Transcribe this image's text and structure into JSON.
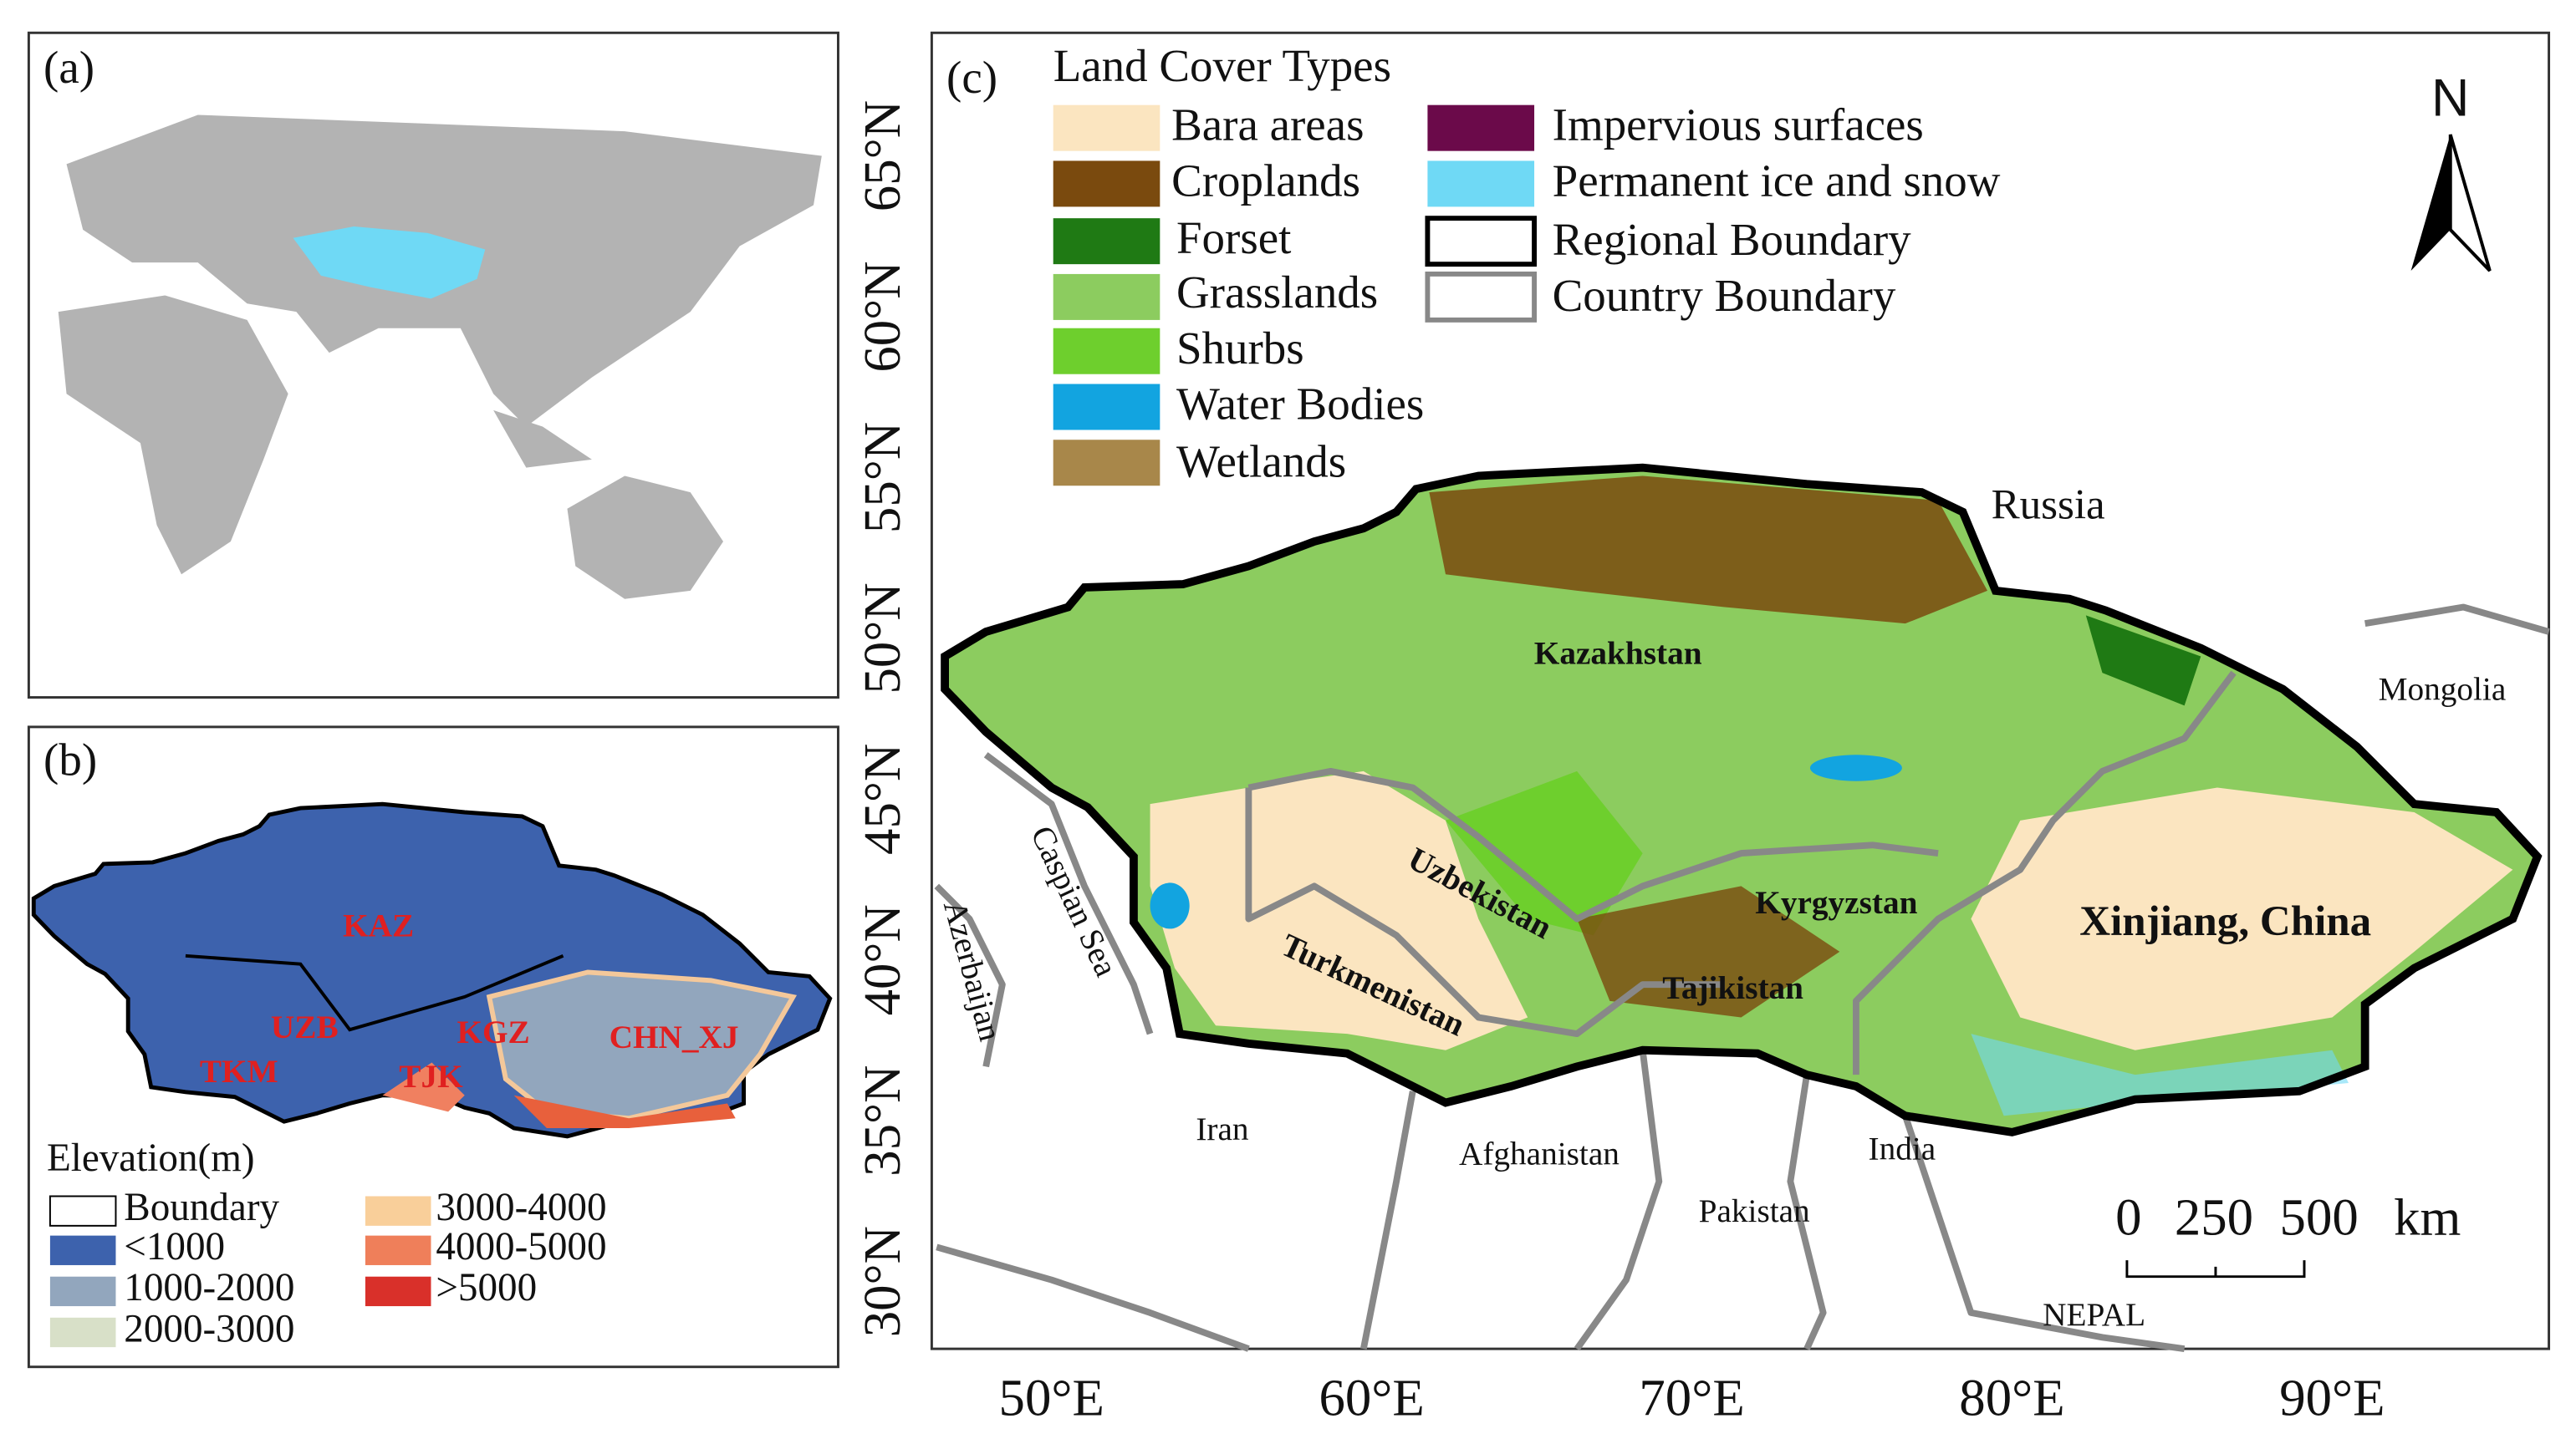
{
  "panel_a": {
    "label": "(a)"
  },
  "panel_b": {
    "label": "(b)",
    "region_labels": [
      "KAZ",
      "UZB",
      "TKM",
      "KGZ",
      "TJK",
      "CHN_XJ"
    ],
    "legend": {
      "title": "Elevation(m)",
      "items": [
        "Boundary",
        "<1000",
        "1000-2000",
        "2000-3000",
        "3000-4000",
        "4000-5000",
        ">5000"
      ]
    }
  },
  "panel_c": {
    "label": "(c)",
    "legend": {
      "title": "Land Cover Types",
      "items": [
        "Bara areas",
        "Croplands",
        "Forset",
        "Grasslands",
        "Shurbs",
        "Water Bodies",
        "Wetlands",
        "Impervious surfaces",
        "Permanent ice and snow",
        "Regional Boundary",
        "Country Boundary"
      ]
    },
    "north": "N",
    "lat_labels": [
      "65°N",
      "60°N",
      "55°N",
      "50°N",
      "45°N",
      "40°N",
      "35°N",
      "30°N"
    ],
    "lon_labels": [
      "50°E",
      "60°E",
      "70°E",
      "80°E",
      "90°E"
    ],
    "place_labels": [
      "Russia",
      "Kazakhstan",
      "Mongolia",
      "Caspian Sea",
      "Azerbaijan",
      "Uzbekistan",
      "Turkmenistan",
      "Kyrgyzstan",
      "Tajikistan",
      "Xinjiang, China",
      "Iran",
      "Afghanistan",
      "Pakistan",
      "India",
      "NEPAL"
    ],
    "scale_bar": {
      "labels": [
        "0",
        "250",
        "500"
      ],
      "unit": "km"
    }
  }
}
